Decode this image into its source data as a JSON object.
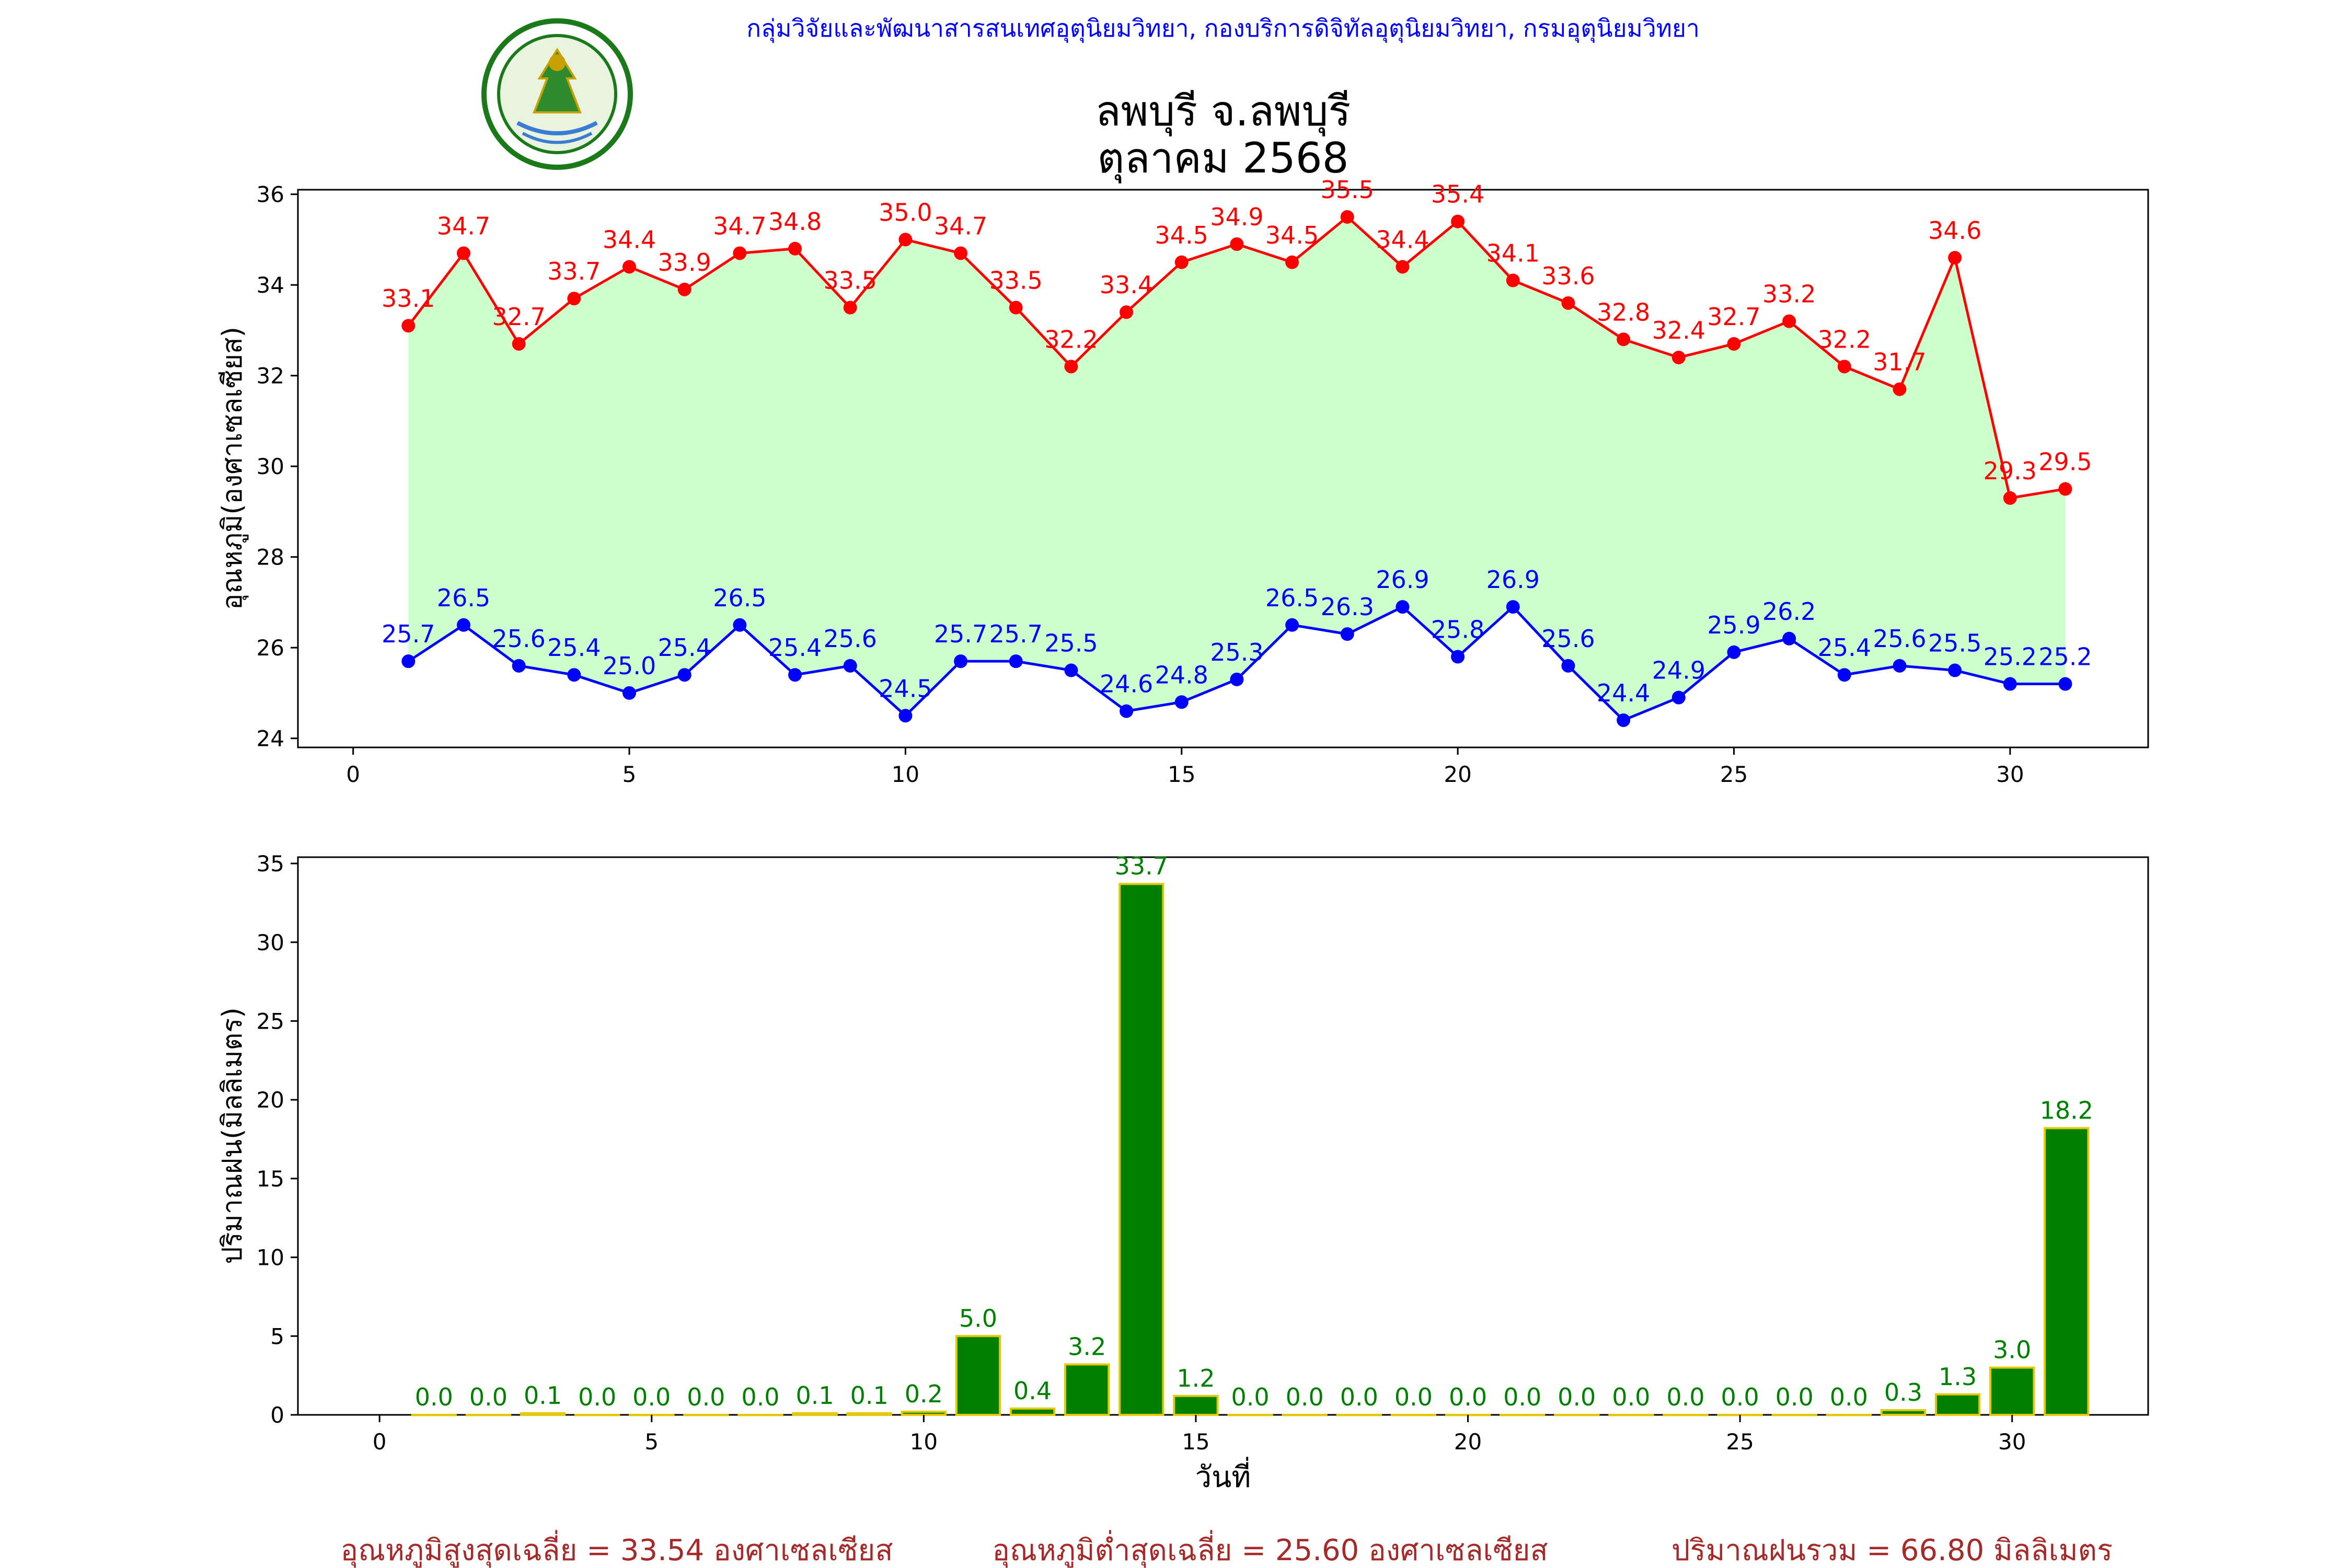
{
  "header": {
    "credit": "กลุ่มวิจัยและพัฒนาสารสนเทศอุตุนิยมวิทยา, กองบริการดิจิทัลอุตุนิยมวิทยา, กรมอุตุนิยมวิทยา",
    "title_line1": "ลพบุรี จ.ลพบุรี",
    "title_line2": "ตุลาคม 2568",
    "logo_text": "กรมอุตุนิยมวิทยา METEOROLOGICAL DEPARTMENT"
  },
  "chart_data": [
    {
      "type": "line",
      "ylabel": "อุณหภูมิ(องศาเซลเซียส)",
      "xlabel": "",
      "xlim": [
        -1,
        32.5
      ],
      "ylim": [
        23.8,
        36.1
      ],
      "xticks": [
        0,
        5,
        10,
        15,
        20,
        25,
        30
      ],
      "yticks": [
        24,
        26,
        28,
        30,
        32,
        34,
        36
      ],
      "x": [
        1,
        2,
        3,
        4,
        5,
        6,
        7,
        8,
        9,
        10,
        11,
        12,
        13,
        14,
        15,
        16,
        17,
        18,
        19,
        20,
        21,
        22,
        23,
        24,
        25,
        26,
        27,
        28,
        29,
        30,
        31
      ],
      "fill_between": true,
      "fill_color": "#ccffcc",
      "series": [
        {
          "color": "#ff0000",
          "values": [
            33.1,
            34.7,
            32.7,
            33.7,
            34.4,
            33.9,
            34.7,
            34.8,
            33.5,
            35.0,
            34.7,
            33.5,
            32.2,
            33.4,
            34.5,
            34.9,
            34.5,
            35.5,
            34.4,
            35.4,
            34.1,
            33.6,
            32.8,
            32.4,
            32.7,
            33.2,
            32.2,
            31.7,
            34.6,
            29.3,
            29.5
          ]
        },
        {
          "color": "#0000ff",
          "values": [
            25.7,
            26.5,
            25.6,
            25.4,
            25.0,
            25.4,
            26.5,
            25.4,
            25.6,
            24.5,
            25.7,
            25.7,
            25.5,
            24.6,
            24.8,
            25.3,
            26.5,
            26.3,
            26.9,
            25.8,
            26.9,
            25.6,
            24.4,
            24.9,
            25.9,
            26.2,
            25.4,
            25.6,
            25.5,
            25.2,
            25.2
          ]
        }
      ]
    },
    {
      "type": "bar",
      "ylabel": "ปริมาณฝน(มิลลิเมตร)",
      "xlabel": "วันที่",
      "xlim": [
        -1.5,
        32.5
      ],
      "ylim": [
        0,
        35.4
      ],
      "xticks": [
        0,
        5,
        10,
        15,
        20,
        25,
        30
      ],
      "yticks": [
        0,
        5,
        10,
        15,
        20,
        25,
        30,
        35
      ],
      "bar_color": "#008000",
      "edge_color": "#e6c800",
      "label_color": "#008000",
      "x": [
        1,
        2,
        3,
        4,
        5,
        6,
        7,
        8,
        9,
        10,
        11,
        12,
        13,
        14,
        15,
        16,
        17,
        18,
        19,
        20,
        21,
        22,
        23,
        24,
        25,
        26,
        27,
        28,
        29,
        30,
        31
      ],
      "values": [
        0.0,
        0.0,
        0.1,
        0.0,
        0.0,
        0.0,
        0.0,
        0.1,
        0.1,
        0.2,
        5.0,
        0.4,
        3.2,
        33.7,
        1.2,
        0.0,
        0.0,
        0.0,
        0.0,
        0.0,
        0.0,
        0.0,
        0.0,
        0.0,
        0.0,
        0.0,
        0.0,
        0.3,
        1.3,
        3.0,
        18.2
      ]
    }
  ],
  "summary": {
    "color": "#a52a2a",
    "avg_max": "อุณหภูมิสูงสุดเฉลี่ย = 33.54 องศาเซลเซียส",
    "avg_min": "อุณหภูมิต่ำสุดเฉลี่ย = 25.60 องศาเซลเซียส",
    "total_rain": "ปริมาณฝนรวม = 66.80 มิลลิเมตร"
  }
}
